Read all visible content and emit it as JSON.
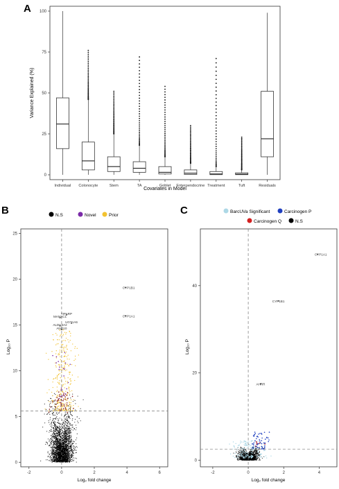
{
  "panels": {
    "A": {
      "letter": "A"
    },
    "B": {
      "letter": "B"
    },
    "C": {
      "letter": "C"
    }
  },
  "colors": {
    "ns": "#000000",
    "novel": "#7b2aa8",
    "prior": "#f2c230",
    "barcuva": "#add8e6",
    "carcinogen_p": "#1f3fbf",
    "carcinogen_q": "#d32020"
  },
  "chart_data": [
    {
      "type": "box",
      "xlabel": "Covariates in Model",
      "ylabel": "Variance Explained (%)",
      "ylim": [
        0,
        100
      ],
      "yticks": [
        0,
        25,
        50,
        75,
        100
      ],
      "categories": [
        "Individual",
        "Colonocyte",
        "Stem",
        "TA",
        "Goblet",
        "Enteroendocrine",
        "Treatment",
        "Tuft",
        "Residuals"
      ],
      "boxes": [
        {
          "min": 0,
          "q1": 16,
          "median": 31,
          "q3": 47,
          "max": 100,
          "outlier_max": 100
        },
        {
          "min": 0,
          "q1": 3,
          "median": 8.5,
          "q3": 20,
          "max": 46,
          "outlier_max": 76
        },
        {
          "min": 0,
          "q1": 2,
          "median": 5,
          "q3": 11,
          "max": 25,
          "outlier_max": 51
        },
        {
          "min": 0,
          "q1": 1.5,
          "median": 4,
          "q3": 8,
          "max": 18,
          "outlier_max": 72
        },
        {
          "min": 0,
          "q1": 0.5,
          "median": 1.5,
          "q3": 5,
          "max": 11,
          "outlier_max": 54
        },
        {
          "min": 0,
          "q1": 0.2,
          "median": 1,
          "q3": 3,
          "max": 7,
          "outlier_max": 30
        },
        {
          "min": 0,
          "q1": 0.1,
          "median": 0.5,
          "q3": 2,
          "max": 5,
          "outlier_max": 71
        },
        {
          "min": 0,
          "q1": 0.1,
          "median": 0.4,
          "q3": 1.2,
          "max": 3,
          "outlier_max": 23
        },
        {
          "min": 0,
          "q1": 11,
          "median": 22,
          "q3": 51,
          "max": 99,
          "outlier_max": 99
        }
      ]
    },
    {
      "type": "scatter",
      "xlabel": "Log₂ fold change",
      "ylabel": "Log₁₀ P",
      "xlim": [
        -2.5,
        6.5
      ],
      "ylim": [
        -0.5,
        25.5
      ],
      "xticks": [
        -2,
        0,
        2,
        4,
        6
      ],
      "yticks": [
        0,
        5,
        10,
        15,
        20,
        25
      ],
      "threshold_y": 5.6,
      "threshold_x": 0,
      "legend": [
        "N.S",
        "Novel",
        "Prior"
      ],
      "labels": [
        {
          "text": "CYP1B1",
          "x": 3.9,
          "y": 19.1
        },
        {
          "text": "CYP1A1",
          "x": 3.9,
          "y": 16.0
        },
        {
          "text": "TIPARP",
          "x": 0.3,
          "y": 16.1
        },
        {
          "text": "MANSC1",
          "x": -0.1,
          "y": 15.8
        },
        {
          "text": "UGT1A6",
          "x": 0.6,
          "y": 15.2
        },
        {
          "text": "ALDH3A2",
          "x": -0.1,
          "y": 14.9
        },
        {
          "text": "ANO10",
          "x": 0.0,
          "y": 14.5
        }
      ]
    },
    {
      "type": "scatter",
      "xlabel": "Log₂ fold change",
      "ylabel": "Log₁₀ P",
      "xlim": [
        -2.7,
        5.0
      ],
      "ylim": [
        -1.5,
        53
      ],
      "xticks": [
        -2,
        0,
        2,
        4
      ],
      "yticks": [
        0,
        20,
        40
      ],
      "threshold_y": 2.5,
      "threshold_x": 0,
      "legend": [
        "BarcUVa Significant",
        "Carcinogen P",
        "Carcinogen Q",
        "N.S"
      ],
      "labels": [
        {
          "text": "CYP1A1",
          "x": 3.9,
          "y": 47.2
        },
        {
          "text": "CYP1B1",
          "x": 1.7,
          "y": 36.5
        },
        {
          "text": "AHRR",
          "x": 0.7,
          "y": 17.5
        }
      ]
    }
  ]
}
